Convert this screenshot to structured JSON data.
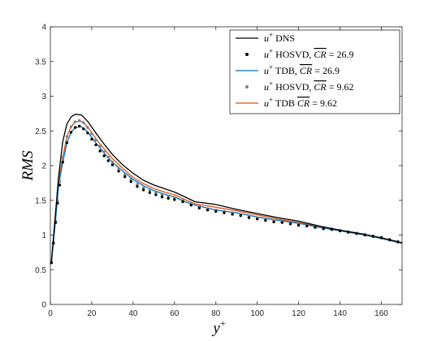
{
  "chart_data": {
    "type": "line",
    "xlabel": "y+",
    "ylabel": "RMS",
    "xlim": [
      0,
      170
    ],
    "ylim": [
      0,
      4
    ],
    "xticks": [
      "0",
      "20",
      "40",
      "60",
      "80",
      "100",
      "120",
      "140",
      "160"
    ],
    "yticks": [
      "0",
      "0.5",
      "1",
      "1.5",
      "2",
      "2.5",
      "3",
      "3.5",
      "4"
    ],
    "grid": false,
    "legend_position": "top-right",
    "series": [
      {
        "name": "u+ DNS",
        "style": "line",
        "color": "#000000",
        "x": [
          0.5,
          2,
          4,
          6,
          8,
          10,
          12,
          15,
          18,
          22,
          26,
          30,
          35,
          40,
          45,
          50,
          55,
          60,
          65,
          70,
          80,
          90,
          100,
          110,
          120,
          130,
          140,
          150,
          160,
          170
        ],
        "y": [
          0.62,
          1.15,
          1.85,
          2.35,
          2.6,
          2.7,
          2.74,
          2.73,
          2.64,
          2.47,
          2.31,
          2.16,
          2.01,
          1.89,
          1.79,
          1.72,
          1.67,
          1.62,
          1.55,
          1.48,
          1.44,
          1.37,
          1.31,
          1.25,
          1.2,
          1.13,
          1.07,
          1.02,
          0.96,
          0.89
        ]
      },
      {
        "name": "u+ HOSVD, CR = 26.9",
        "style": "markers",
        "color": "#000000",
        "x": [
          0.5,
          1.5,
          2.5,
          3.5,
          4.5,
          6,
          8,
          10,
          12,
          14,
          16,
          18,
          20,
          22,
          24,
          26,
          28,
          30,
          33,
          36,
          39,
          42,
          45,
          48,
          51,
          54,
          57,
          60,
          64,
          68,
          72,
          76,
          80,
          84,
          88,
          92,
          96,
          100,
          104,
          108,
          112,
          116,
          120,
          124,
          128,
          132,
          136,
          140,
          144,
          148,
          152,
          156,
          160,
          164,
          168
        ],
        "y": [
          0.6,
          0.88,
          1.18,
          1.46,
          1.72,
          2.05,
          2.33,
          2.48,
          2.55,
          2.57,
          2.53,
          2.47,
          2.38,
          2.3,
          2.21,
          2.14,
          2.07,
          2.01,
          1.92,
          1.84,
          1.77,
          1.7,
          1.65,
          1.61,
          1.58,
          1.55,
          1.53,
          1.51,
          1.48,
          1.43,
          1.39,
          1.36,
          1.34,
          1.32,
          1.3,
          1.28,
          1.25,
          1.23,
          1.21,
          1.19,
          1.18,
          1.16,
          1.14,
          1.13,
          1.11,
          1.09,
          1.08,
          1.06,
          1.04,
          1.02,
          1.0,
          0.98,
          0.96,
          0.93,
          0.9
        ]
      },
      {
        "name": "u+ TDB, CR = 26.9",
        "style": "line",
        "color": "#0072bd",
        "x": [
          0.5,
          2,
          4,
          6,
          8,
          10,
          12,
          15,
          18,
          22,
          26,
          30,
          35,
          40,
          45,
          50,
          55,
          60,
          65,
          70,
          80,
          90,
          100,
          110,
          120,
          130,
          140,
          150,
          160,
          170
        ],
        "y": [
          0.6,
          1.05,
          1.72,
          2.05,
          2.33,
          2.48,
          2.55,
          2.56,
          2.49,
          2.33,
          2.18,
          2.05,
          1.92,
          1.8,
          1.71,
          1.64,
          1.59,
          1.55,
          1.48,
          1.43,
          1.36,
          1.32,
          1.26,
          1.21,
          1.17,
          1.11,
          1.06,
          1.01,
          0.95,
          0.88
        ]
      },
      {
        "name": "u+ HOSVD, CR = 9.62",
        "style": "markers",
        "color": "#7f7f7f",
        "x": [
          0.5,
          1.5,
          2.5,
          3.5,
          4.5,
          6,
          8,
          10,
          12,
          14,
          16,
          18,
          20,
          22,
          24,
          26,
          28,
          30,
          33,
          36,
          39,
          42,
          45,
          48,
          51,
          54,
          57,
          60,
          64,
          68,
          72,
          76,
          80,
          84,
          88,
          92,
          96,
          100,
          104,
          108,
          112,
          116,
          120,
          124,
          128,
          132,
          136,
          140,
          144,
          148,
          152,
          156,
          160,
          164,
          168
        ],
        "y": [
          0.61,
          0.9,
          1.2,
          1.5,
          1.77,
          2.12,
          2.42,
          2.56,
          2.63,
          2.65,
          2.62,
          2.55,
          2.46,
          2.37,
          2.28,
          2.2,
          2.12,
          2.05,
          1.96,
          1.87,
          1.8,
          1.73,
          1.68,
          1.64,
          1.61,
          1.58,
          1.56,
          1.54,
          1.5,
          1.45,
          1.41,
          1.38,
          1.36,
          1.34,
          1.32,
          1.3,
          1.27,
          1.25,
          1.23,
          1.21,
          1.19,
          1.17,
          1.15,
          1.14,
          1.12,
          1.1,
          1.09,
          1.07,
          1.05,
          1.03,
          1.01,
          0.99,
          0.97,
          0.94,
          0.91
        ]
      },
      {
        "name": "u+ TDB CR = 9.62",
        "style": "line",
        "color": "#d95319",
        "x": [
          0.5,
          2,
          4,
          6,
          8,
          10,
          12,
          15,
          18,
          22,
          26,
          30,
          35,
          40,
          45,
          50,
          55,
          60,
          65,
          70,
          80,
          90,
          100,
          110,
          120,
          130,
          140,
          150,
          160,
          170
        ],
        "y": [
          0.61,
          1.08,
          1.78,
          2.12,
          2.42,
          2.56,
          2.63,
          2.64,
          2.56,
          2.39,
          2.24,
          2.1,
          1.96,
          1.83,
          1.74,
          1.67,
          1.62,
          1.58,
          1.51,
          1.45,
          1.4,
          1.35,
          1.29,
          1.23,
          1.18,
          1.12,
          1.07,
          1.02,
          0.95,
          0.88
        ]
      }
    ]
  },
  "legend": {
    "entries": [
      {
        "prefix": "u",
        "sup": "+",
        "text": " DNS",
        "overbar": "",
        "rest": ""
      },
      {
        "prefix": "u",
        "sup": "+",
        "text": " HOSVD, ",
        "overbar": "CR",
        "rest": " = 26.9"
      },
      {
        "prefix": "u",
        "sup": "+",
        "text": " TDB, ",
        "overbar": "CR",
        "rest": " = 26.9"
      },
      {
        "prefix": "u",
        "sup": "+",
        "text": " HOSVD, ",
        "overbar": "CR",
        "rest": " = 9.62"
      },
      {
        "prefix": "u",
        "sup": "+",
        "text": " TDB ",
        "overbar": "CR",
        "rest": " = 9.62"
      }
    ]
  },
  "axis_titles": {
    "x_main": "y",
    "x_sup": "+",
    "y_main": "RMS"
  }
}
